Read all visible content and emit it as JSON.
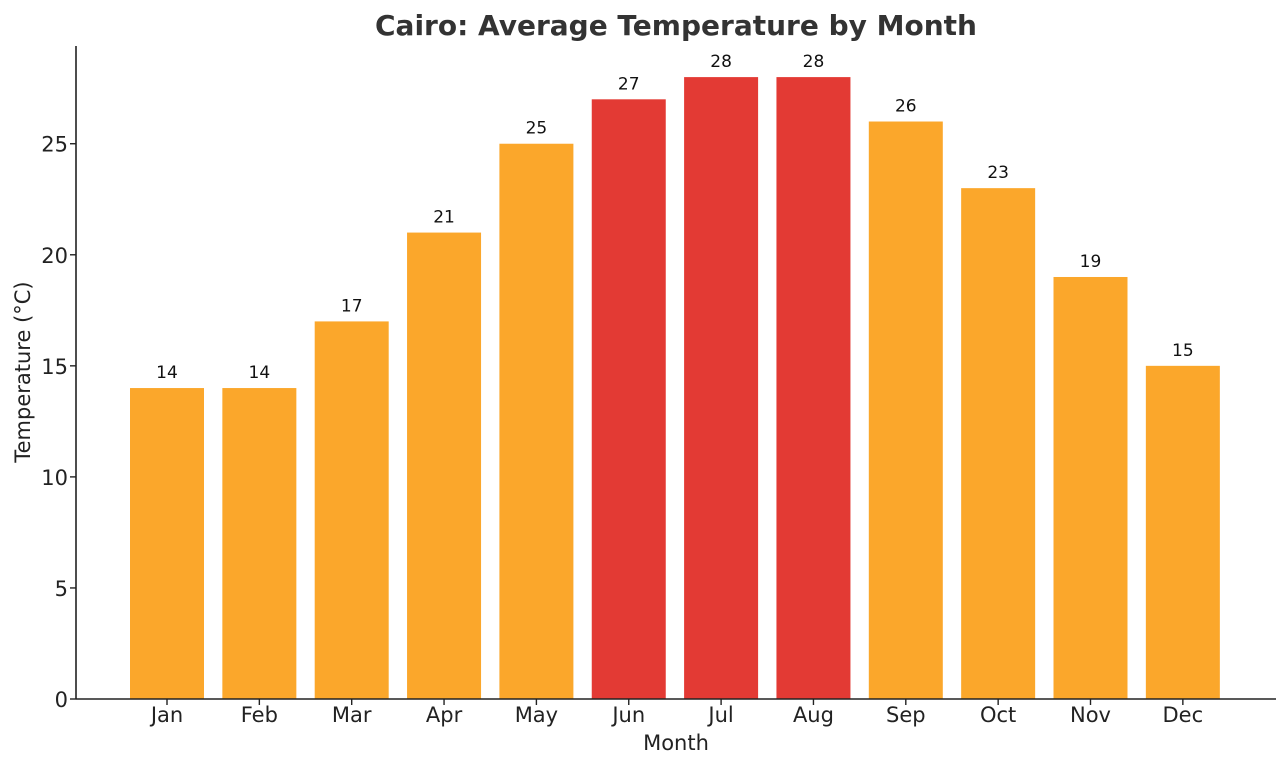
{
  "chart_data": {
    "type": "bar",
    "title": "Cairo: Average Temperature by Month",
    "xlabel": "Month",
    "ylabel": "Temperature (°C)",
    "categories": [
      "Jan",
      "Feb",
      "Mar",
      "Apr",
      "May",
      "Jun",
      "Jul",
      "Aug",
      "Sep",
      "Oct",
      "Nov",
      "Dec"
    ],
    "values": [
      14,
      14,
      17,
      21,
      25,
      27,
      28,
      28,
      26,
      23,
      19,
      15
    ],
    "highlighted": [
      false,
      false,
      false,
      false,
      false,
      true,
      true,
      true,
      false,
      false,
      false,
      false
    ],
    "ylim": [
      0,
      29.4
    ],
    "yticks": [
      0,
      5,
      10,
      15,
      20,
      25
    ],
    "grid": false,
    "legend": "none",
    "colors": {
      "bar": "#FBA72B",
      "bar_highlight": "#E33A34",
      "axis": "#222222",
      "title": "#333333"
    }
  }
}
